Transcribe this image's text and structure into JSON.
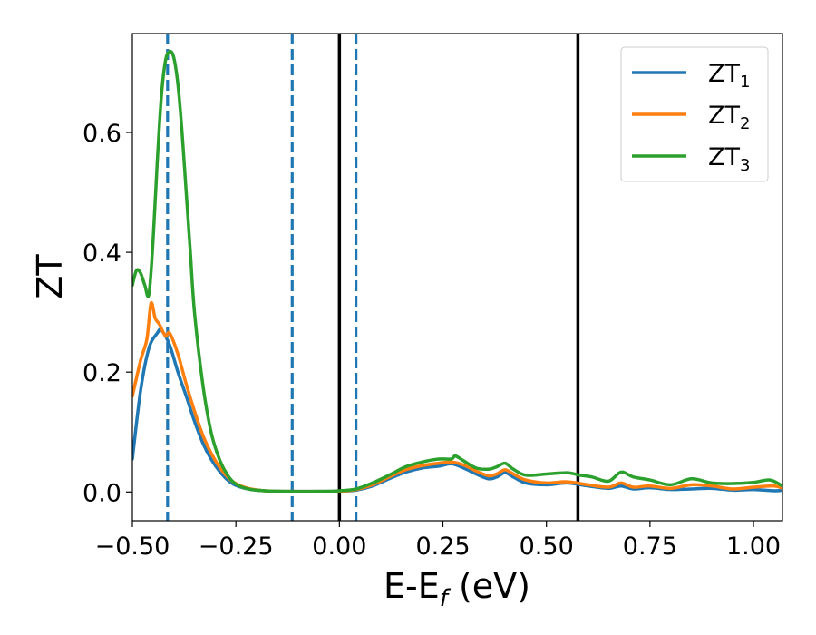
{
  "chart_data": {
    "type": "line",
    "xlabel": {
      "main": "E-E",
      "sub": "f",
      "suffix": " (eV)"
    },
    "ylabel": "ZT",
    "xlim": [
      -0.5,
      1.07
    ],
    "ylim": [
      -0.048,
      0.765
    ],
    "xticks": [
      -0.5,
      -0.25,
      0.0,
      0.25,
      0.5,
      0.75,
      1.0
    ],
    "xtick_labels": [
      "−0.50",
      "−0.25",
      "0.00",
      "0.25",
      "0.50",
      "0.75",
      "1.00"
    ],
    "yticks": [
      0.0,
      0.2,
      0.4,
      0.6
    ],
    "ytick_labels": [
      "0.0",
      "0.2",
      "0.4",
      "0.6"
    ],
    "grid": false,
    "legend_position": "top-right",
    "vlines": [
      {
        "x": -0.415,
        "style": "dashed",
        "color": "#1f77b4"
      },
      {
        "x": -0.114,
        "style": "dashed",
        "color": "#1f77b4"
      },
      {
        "x": 0.0,
        "style": "solid",
        "color": "#000000"
      },
      {
        "x": 0.04,
        "style": "dashed",
        "color": "#1f77b4"
      },
      {
        "x": 0.576,
        "style": "solid",
        "color": "#000000"
      }
    ],
    "series": [
      {
        "name": "ZT",
        "sub": "1",
        "color": "#1f77b4",
        "x": [
          -0.5,
          -0.48,
          -0.46,
          -0.44,
          -0.43,
          -0.41,
          -0.39,
          -0.37,
          -0.35,
          -0.33,
          -0.31,
          -0.29,
          -0.27,
          -0.25,
          -0.22,
          -0.18,
          -0.12,
          -0.05,
          0.0,
          0.04,
          0.08,
          0.12,
          0.16,
          0.2,
          0.24,
          0.27,
          0.3,
          0.33,
          0.36,
          0.38,
          0.4,
          0.42,
          0.45,
          0.5,
          0.55,
          0.6,
          0.65,
          0.68,
          0.71,
          0.75,
          0.8,
          0.85,
          0.9,
          0.95,
          1.0,
          1.05,
          1.07
        ],
        "y": [
          0.055,
          0.17,
          0.24,
          0.265,
          0.27,
          0.245,
          0.2,
          0.16,
          0.118,
          0.082,
          0.055,
          0.035,
          0.02,
          0.011,
          0.005,
          0.002,
          0.001,
          0.001,
          0.001,
          0.003,
          0.01,
          0.022,
          0.033,
          0.04,
          0.043,
          0.047,
          0.04,
          0.03,
          0.022,
          0.025,
          0.032,
          0.025,
          0.015,
          0.012,
          0.015,
          0.01,
          0.006,
          0.01,
          0.005,
          0.007,
          0.004,
          0.005,
          0.006,
          0.003,
          0.004,
          0.002,
          0.003
        ]
      },
      {
        "name": "ZT",
        "sub": "2",
        "color": "#ff7f0e",
        "x": [
          -0.5,
          -0.48,
          -0.465,
          -0.455,
          -0.445,
          -0.435,
          -0.42,
          -0.41,
          -0.39,
          -0.37,
          -0.35,
          -0.33,
          -0.31,
          -0.29,
          -0.27,
          -0.25,
          -0.22,
          -0.18,
          -0.12,
          -0.05,
          0.0,
          0.04,
          0.08,
          0.12,
          0.16,
          0.2,
          0.24,
          0.27,
          0.3,
          0.33,
          0.36,
          0.38,
          0.4,
          0.42,
          0.45,
          0.5,
          0.55,
          0.6,
          0.65,
          0.68,
          0.71,
          0.75,
          0.8,
          0.85,
          0.9,
          0.95,
          1.0,
          1.05,
          1.07
        ],
        "y": [
          0.16,
          0.22,
          0.255,
          0.315,
          0.29,
          0.28,
          0.26,
          0.265,
          0.23,
          0.18,
          0.135,
          0.095,
          0.065,
          0.042,
          0.025,
          0.014,
          0.006,
          0.002,
          0.001,
          0.001,
          0.001,
          0.004,
          0.012,
          0.025,
          0.037,
          0.044,
          0.048,
          0.05,
          0.045,
          0.035,
          0.027,
          0.03,
          0.037,
          0.03,
          0.02,
          0.015,
          0.017,
          0.012,
          0.008,
          0.015,
          0.008,
          0.01,
          0.006,
          0.012,
          0.01,
          0.005,
          0.008,
          0.01,
          0.006
        ]
      },
      {
        "name": "ZT",
        "sub": "3",
        "color": "#2ca02c",
        "x": [
          -0.5,
          -0.49,
          -0.48,
          -0.47,
          -0.46,
          -0.45,
          -0.44,
          -0.43,
          -0.42,
          -0.41,
          -0.4,
          -0.39,
          -0.38,
          -0.37,
          -0.36,
          -0.35,
          -0.33,
          -0.31,
          -0.29,
          -0.27,
          -0.25,
          -0.22,
          -0.18,
          -0.12,
          -0.05,
          0.0,
          0.04,
          0.08,
          0.12,
          0.16,
          0.2,
          0.24,
          0.27,
          0.28,
          0.3,
          0.33,
          0.36,
          0.38,
          0.4,
          0.42,
          0.45,
          0.5,
          0.55,
          0.58,
          0.61,
          0.65,
          0.68,
          0.71,
          0.75,
          0.8,
          0.85,
          0.9,
          0.95,
          1.0,
          1.04,
          1.07
        ],
        "y": [
          0.345,
          0.37,
          0.365,
          0.345,
          0.33,
          0.42,
          0.55,
          0.66,
          0.72,
          0.735,
          0.725,
          0.68,
          0.6,
          0.5,
          0.4,
          0.3,
          0.18,
          0.1,
          0.055,
          0.028,
          0.013,
          0.005,
          0.002,
          0.001,
          0.001,
          0.002,
          0.005,
          0.015,
          0.028,
          0.042,
          0.05,
          0.055,
          0.055,
          0.06,
          0.052,
          0.04,
          0.038,
          0.042,
          0.048,
          0.038,
          0.028,
          0.03,
          0.032,
          0.028,
          0.025,
          0.018,
          0.033,
          0.025,
          0.02,
          0.012,
          0.022,
          0.015,
          0.014,
          0.016,
          0.02,
          0.01
        ]
      }
    ]
  }
}
